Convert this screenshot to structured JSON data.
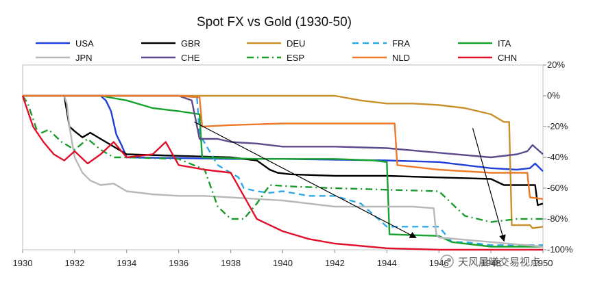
{
  "chart_data": {
    "type": "line",
    "title": "Spot FX vs Gold (1930-50)",
    "xlabel": "",
    "ylabel": "",
    "xlim": [
      1930,
      1950
    ],
    "ylim": [
      -100,
      20
    ],
    "x_ticks": [
      1930,
      1932,
      1934,
      1936,
      1938,
      1940,
      1942,
      1944,
      1946,
      1948,
      1950
    ],
    "x_tick_labels": [
      "1930",
      "1932",
      "1934",
      "1936",
      "1938",
      "1940",
      "1942",
      "1944",
      "1946",
      "1948",
      "1950"
    ],
    "y_ticks": [
      20,
      0,
      -20,
      -40,
      -60,
      -80,
      -100
    ],
    "y_tick_labels": [
      "20%",
      "0%",
      "-20%",
      "-40%",
      "-60%",
      "-80%",
      "-100%"
    ],
    "y_axis_position": "right",
    "legend_position": "top",
    "series": [
      {
        "name": "USA",
        "color": "#1f3fd8",
        "dash": "solid",
        "points": [
          [
            1930,
            0
          ],
          [
            1933.0,
            0
          ],
          [
            1933.2,
            -3
          ],
          [
            1933.4,
            -10
          ],
          [
            1933.6,
            -25
          ],
          [
            1933.8,
            -32
          ],
          [
            1934.0,
            -40
          ],
          [
            1936,
            -40.5
          ],
          [
            1938,
            -41
          ],
          [
            1940,
            -41
          ],
          [
            1942,
            -41.5
          ],
          [
            1944,
            -42
          ],
          [
            1946,
            -43
          ],
          [
            1948,
            -47
          ],
          [
            1949,
            -48
          ],
          [
            1949.5,
            -47
          ],
          [
            1949.7,
            -44
          ],
          [
            1950,
            -49
          ]
        ]
      },
      {
        "name": "GBR",
        "color": "#000000",
        "dash": "solid",
        "points": [
          [
            1930,
            0
          ],
          [
            1931.6,
            0
          ],
          [
            1931.7,
            -10
          ],
          [
            1931.8,
            -20
          ],
          [
            1932.0,
            -23
          ],
          [
            1932.3,
            -27
          ],
          [
            1932.6,
            -24
          ],
          [
            1933.0,
            -28
          ],
          [
            1933.4,
            -32
          ],
          [
            1934,
            -38
          ],
          [
            1936,
            -39
          ],
          [
            1938,
            -40
          ],
          [
            1939.0,
            -42
          ],
          [
            1939.5,
            -48
          ],
          [
            1939.8,
            -50
          ],
          [
            1940.3,
            -51
          ],
          [
            1942,
            -52
          ],
          [
            1944,
            -52
          ],
          [
            1946,
            -53
          ],
          [
            1948,
            -54
          ],
          [
            1948.5,
            -58
          ],
          [
            1949.7,
            -58
          ],
          [
            1949.8,
            -71
          ],
          [
            1950,
            -70
          ]
        ]
      },
      {
        "name": "DEU",
        "color": "#c8902a",
        "dash": "solid",
        "points": [
          [
            1930,
            0
          ],
          [
            1936,
            0
          ],
          [
            1938,
            0
          ],
          [
            1940,
            0
          ],
          [
            1942,
            0
          ],
          [
            1943,
            -3
          ],
          [
            1944,
            -5
          ],
          [
            1945,
            -5
          ],
          [
            1946,
            -6
          ],
          [
            1947,
            -8
          ],
          [
            1948,
            -12
          ],
          [
            1948.5,
            -17
          ],
          [
            1948.7,
            -17
          ],
          [
            1948.8,
            -84
          ],
          [
            1949.5,
            -84
          ],
          [
            1949.6,
            -86
          ],
          [
            1950,
            -85
          ]
        ]
      },
      {
        "name": "FRA",
        "color": "#2fa8e8",
        "dash": "dashed",
        "points": [
          [
            1930,
            0
          ],
          [
            1936,
            0
          ],
          [
            1936.7,
            -1
          ],
          [
            1936.8,
            -25
          ],
          [
            1937.5,
            -45
          ],
          [
            1938.3,
            -53
          ],
          [
            1938.5,
            -60
          ],
          [
            1939,
            -62
          ],
          [
            1939.5,
            -63
          ],
          [
            1940,
            -62
          ],
          [
            1941,
            -65
          ],
          [
            1942,
            -65
          ],
          [
            1943,
            -70
          ],
          [
            1944,
            -85
          ],
          [
            1945,
            -85
          ],
          [
            1946,
            -85
          ],
          [
            1946.5,
            -95
          ],
          [
            1947,
            -95
          ],
          [
            1948,
            -97
          ],
          [
            1950,
            -97
          ]
        ]
      },
      {
        "name": "ITA",
        "color": "#16a32e",
        "dash": "solid",
        "points": [
          [
            1930,
            0
          ],
          [
            1933,
            0
          ],
          [
            1934,
            -3
          ],
          [
            1935,
            -8
          ],
          [
            1936,
            -10
          ],
          [
            1936.8,
            -12
          ],
          [
            1936.9,
            -40
          ],
          [
            1939,
            -41
          ],
          [
            1942,
            -41
          ],
          [
            1943.5,
            -42
          ],
          [
            1944.0,
            -43
          ],
          [
            1944.1,
            -90
          ],
          [
            1946,
            -91
          ],
          [
            1946.5,
            -95
          ],
          [
            1948,
            -98
          ],
          [
            1950,
            -98
          ]
        ]
      },
      {
        "name": "JPN",
        "color": "#b8b8b8",
        "dash": "solid",
        "points": [
          [
            1930,
            0
          ],
          [
            1931.6,
            0
          ],
          [
            1931.7,
            -5
          ],
          [
            1931.8,
            -20
          ],
          [
            1932.0,
            -40
          ],
          [
            1932.3,
            -50
          ],
          [
            1932.6,
            -55
          ],
          [
            1933,
            -58
          ],
          [
            1933.5,
            -57
          ],
          [
            1934,
            -62
          ],
          [
            1935,
            -64
          ],
          [
            1936,
            -65
          ],
          [
            1937,
            -65
          ],
          [
            1938,
            -66
          ],
          [
            1939,
            -67
          ],
          [
            1940,
            -68
          ],
          [
            1942,
            -72
          ],
          [
            1944,
            -72
          ],
          [
            1945,
            -72
          ],
          [
            1945.8,
            -73
          ],
          [
            1945.9,
            -90
          ],
          [
            1946,
            -92
          ],
          [
            1948,
            -95
          ],
          [
            1950,
            -98
          ]
        ]
      },
      {
        "name": "CHE",
        "color": "#5c4a8c",
        "dash": "solid",
        "points": [
          [
            1930,
            0
          ],
          [
            1936,
            0
          ],
          [
            1936.5,
            -3
          ],
          [
            1936.8,
            -28
          ],
          [
            1937.5,
            -28
          ],
          [
            1938,
            -30
          ],
          [
            1939,
            -31
          ],
          [
            1940,
            -33
          ],
          [
            1942,
            -33
          ],
          [
            1944,
            -34
          ],
          [
            1946,
            -37
          ],
          [
            1948,
            -40
          ],
          [
            1949,
            -38
          ],
          [
            1949.4,
            -36
          ],
          [
            1949.6,
            -32
          ],
          [
            1950,
            -38
          ]
        ]
      },
      {
        "name": "ESP",
        "color": "#1a9a2a",
        "dash": "dashdot",
        "points": [
          [
            1930,
            0
          ],
          [
            1930.2,
            -5
          ],
          [
            1930.6,
            -25
          ],
          [
            1931,
            -22
          ],
          [
            1931.5,
            -30
          ],
          [
            1932,
            -35
          ],
          [
            1932.5,
            -28
          ],
          [
            1933,
            -35
          ],
          [
            1933.5,
            -40
          ],
          [
            1934,
            -40
          ],
          [
            1936,
            -41
          ],
          [
            1937,
            -48
          ],
          [
            1937.5,
            -72
          ],
          [
            1938,
            -80
          ],
          [
            1938.5,
            -80
          ],
          [
            1939,
            -70
          ],
          [
            1939.5,
            -58
          ],
          [
            1940.5,
            -59
          ],
          [
            1942,
            -60
          ],
          [
            1944,
            -61
          ],
          [
            1946,
            -62
          ],
          [
            1947,
            -78
          ],
          [
            1948,
            -82
          ],
          [
            1949,
            -80
          ],
          [
            1950,
            -80
          ]
        ]
      },
      {
        "name": "NLD",
        "color": "#ec7a2a",
        "dash": "solid",
        "points": [
          [
            1930,
            0
          ],
          [
            1936,
            0
          ],
          [
            1936.8,
            -1
          ],
          [
            1936.9,
            -20
          ],
          [
            1938,
            -19
          ],
          [
            1940,
            -18
          ],
          [
            1942,
            -18
          ],
          [
            1944,
            -18
          ],
          [
            1944.3,
            -18
          ],
          [
            1944.4,
            -45
          ],
          [
            1946,
            -48
          ],
          [
            1948,
            -50
          ],
          [
            1949,
            -50
          ],
          [
            1949.4,
            -50
          ],
          [
            1949.5,
            -66
          ],
          [
            1950,
            -67
          ]
        ]
      },
      {
        "name": "CHN",
        "color": "#e0102a",
        "dash": "solid",
        "points": [
          [
            1930,
            0
          ],
          [
            1930.2,
            -10
          ],
          [
            1930.4,
            -20
          ],
          [
            1930.8,
            -30
          ],
          [
            1931.2,
            -38
          ],
          [
            1931.6,
            -42
          ],
          [
            1932,
            -36
          ],
          [
            1932.5,
            -44
          ],
          [
            1933,
            -38
          ],
          [
            1933.5,
            -30
          ],
          [
            1934,
            -40
          ],
          [
            1935,
            -38
          ],
          [
            1935.5,
            -30
          ],
          [
            1936,
            -45
          ],
          [
            1937,
            -48
          ],
          [
            1938,
            -50
          ],
          [
            1938.5,
            -65
          ],
          [
            1939,
            -80
          ],
          [
            1940,
            -88
          ],
          [
            1941,
            -93
          ],
          [
            1942,
            -96
          ],
          [
            1944,
            -99
          ],
          [
            1946,
            -100
          ],
          [
            1948,
            -100
          ],
          [
            1950,
            -100
          ]
        ]
      }
    ]
  },
  "watermark": "天风晨曦交易视点"
}
